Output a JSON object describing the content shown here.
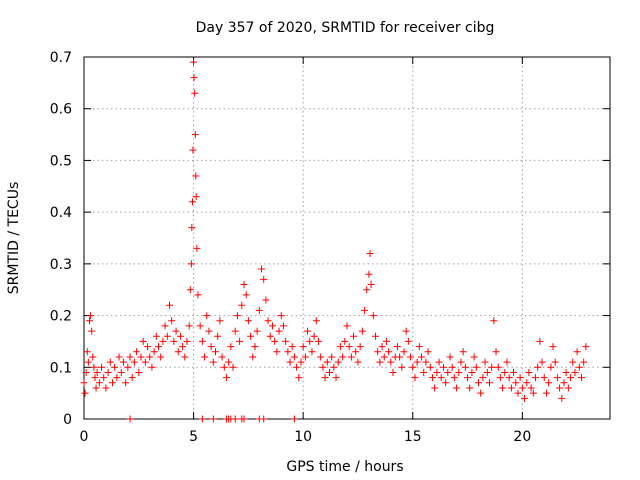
{
  "chart_data": {
    "type": "scatter",
    "title": "Day 357 of 2020, SRMTID for receiver cibg",
    "xlabel": "GPS time / hours",
    "ylabel": "SRMTID / TECUs",
    "xlim": [
      0,
      24
    ],
    "ylim": [
      0,
      0.7
    ],
    "x_ticks": [
      0,
      5,
      10,
      15,
      20
    ],
    "y_ticks": [
      0,
      0.1,
      0.2,
      0.3,
      0.4,
      0.5,
      0.6,
      0.7
    ],
    "x_tick_labels": [
      "0",
      "5",
      "10",
      "15",
      "20"
    ],
    "y_tick_labels": [
      "0",
      "0.1",
      "0.2",
      "0.3",
      "0.4",
      "0.5",
      "0.6",
      "0.7"
    ],
    "grid": true,
    "marker": "plus",
    "marker_color": "#ff0000",
    "series": [
      {
        "name": "SRMTID",
        "points": [
          [
            0.0,
            0.07
          ],
          [
            0.05,
            0.05
          ],
          [
            0.1,
            0.09
          ],
          [
            0.15,
            0.13
          ],
          [
            0.2,
            0.11
          ],
          [
            0.25,
            0.19
          ],
          [
            0.3,
            0.2
          ],
          [
            0.35,
            0.17
          ],
          [
            0.4,
            0.12
          ],
          [
            0.45,
            0.1
          ],
          [
            0.5,
            0.08
          ],
          [
            0.55,
            0.06
          ],
          [
            0.6,
            0.09
          ],
          [
            0.7,
            0.07
          ],
          [
            0.8,
            0.1
          ],
          [
            0.9,
            0.08
          ],
          [
            1.0,
            0.06
          ],
          [
            1.1,
            0.09
          ],
          [
            1.2,
            0.11
          ],
          [
            1.3,
            0.07
          ],
          [
            1.4,
            0.1
          ],
          [
            1.5,
            0.08
          ],
          [
            1.6,
            0.12
          ],
          [
            1.7,
            0.09
          ],
          [
            1.8,
            0.11
          ],
          [
            1.9,
            0.07
          ],
          [
            2.0,
            0.1
          ],
          [
            2.1,
            0.12
          ],
          [
            2.2,
            0.08
          ],
          [
            2.3,
            0.11
          ],
          [
            2.4,
            0.13
          ],
          [
            2.5,
            0.09
          ],
          [
            2.6,
            0.12
          ],
          [
            2.7,
            0.15
          ],
          [
            2.8,
            0.11
          ],
          [
            2.9,
            0.14
          ],
          [
            3.0,
            0.12
          ],
          [
            3.1,
            0.1
          ],
          [
            3.2,
            0.13
          ],
          [
            3.3,
            0.16
          ],
          [
            3.4,
            0.14
          ],
          [
            3.5,
            0.12
          ],
          [
            3.6,
            0.15
          ],
          [
            3.7,
            0.18
          ],
          [
            3.8,
            0.16
          ],
          [
            3.9,
            0.22
          ],
          [
            4.0,
            0.19
          ],
          [
            4.1,
            0.15
          ],
          [
            4.2,
            0.17
          ],
          [
            4.3,
            0.13
          ],
          [
            4.4,
            0.16
          ],
          [
            4.5,
            0.14
          ],
          [
            4.6,
            0.12
          ],
          [
            4.7,
            0.15
          ],
          [
            4.8,
            0.18
          ],
          [
            4.85,
            0.25
          ],
          [
            4.9,
            0.3
          ],
          [
            4.92,
            0.37
          ],
          [
            4.95,
            0.42
          ],
          [
            4.97,
            0.52
          ],
          [
            5.0,
            0.69
          ],
          [
            5.02,
            0.66
          ],
          [
            5.05,
            0.63
          ],
          [
            5.08,
            0.55
          ],
          [
            5.1,
            0.47
          ],
          [
            5.12,
            0.43
          ],
          [
            5.15,
            0.33
          ],
          [
            5.2,
            0.24
          ],
          [
            5.3,
            0.18
          ],
          [
            5.4,
            0.15
          ],
          [
            5.5,
            0.12
          ],
          [
            5.6,
            0.2
          ],
          [
            5.7,
            0.17
          ],
          [
            5.8,
            0.14
          ],
          [
            5.9,
            0.11
          ],
          [
            6.0,
            0.13
          ],
          [
            6.1,
            0.16
          ],
          [
            6.2,
            0.19
          ],
          [
            6.3,
            0.12
          ],
          [
            6.4,
            0.1
          ],
          [
            6.5,
            0.08
          ],
          [
            6.6,
            0.11
          ],
          [
            6.7,
            0.14
          ],
          [
            6.8,
            0.1
          ],
          [
            6.9,
            0.17
          ],
          [
            7.0,
            0.2
          ],
          [
            7.1,
            0.15
          ],
          [
            7.2,
            0.22
          ],
          [
            7.3,
            0.26
          ],
          [
            7.4,
            0.24
          ],
          [
            7.5,
            0.19
          ],
          [
            7.6,
            0.16
          ],
          [
            7.7,
            0.12
          ],
          [
            7.8,
            0.14
          ],
          [
            7.9,
            0.17
          ],
          [
            8.0,
            0.21
          ],
          [
            8.1,
            0.29
          ],
          [
            8.2,
            0.27
          ],
          [
            8.3,
            0.23
          ],
          [
            8.4,
            0.19
          ],
          [
            8.5,
            0.16
          ],
          [
            8.6,
            0.18
          ],
          [
            8.7,
            0.15
          ],
          [
            8.8,
            0.13
          ],
          [
            8.9,
            0.17
          ],
          [
            9.0,
            0.2
          ],
          [
            9.1,
            0.18
          ],
          [
            9.2,
            0.15
          ],
          [
            9.3,
            0.13
          ],
          [
            9.4,
            0.11
          ],
          [
            9.5,
            0.14
          ],
          [
            9.6,
            0.12
          ],
          [
            9.7,
            0.1
          ],
          [
            9.8,
            0.08
          ],
          [
            9.9,
            0.11
          ],
          [
            10.0,
            0.14
          ],
          [
            10.1,
            0.12
          ],
          [
            10.2,
            0.17
          ],
          [
            10.3,
            0.15
          ],
          [
            10.4,
            0.13
          ],
          [
            10.5,
            0.16
          ],
          [
            10.6,
            0.19
          ],
          [
            10.7,
            0.15
          ],
          [
            10.8,
            0.12
          ],
          [
            10.9,
            0.1
          ],
          [
            11.0,
            0.08
          ],
          [
            11.1,
            0.11
          ],
          [
            11.2,
            0.09
          ],
          [
            11.3,
            0.12
          ],
          [
            11.4,
            0.1
          ],
          [
            11.5,
            0.08
          ],
          [
            11.6,
            0.11
          ],
          [
            11.7,
            0.14
          ],
          [
            11.8,
            0.12
          ],
          [
            11.9,
            0.15
          ],
          [
            12.0,
            0.18
          ],
          [
            12.1,
            0.14
          ],
          [
            12.2,
            0.12
          ],
          [
            12.3,
            0.16
          ],
          [
            12.4,
            0.13
          ],
          [
            12.5,
            0.11
          ],
          [
            12.6,
            0.14
          ],
          [
            12.7,
            0.17
          ],
          [
            12.8,
            0.21
          ],
          [
            12.9,
            0.25
          ],
          [
            13.0,
            0.28
          ],
          [
            13.05,
            0.32
          ],
          [
            13.1,
            0.26
          ],
          [
            13.2,
            0.2
          ],
          [
            13.3,
            0.16
          ],
          [
            13.4,
            0.13
          ],
          [
            13.5,
            0.11
          ],
          [
            13.6,
            0.14
          ],
          [
            13.7,
            0.12
          ],
          [
            13.8,
            0.15
          ],
          [
            13.9,
            0.13
          ],
          [
            14.0,
            0.11
          ],
          [
            14.1,
            0.09
          ],
          [
            14.2,
            0.12
          ],
          [
            14.3,
            0.14
          ],
          [
            14.4,
            0.12
          ],
          [
            14.5,
            0.1
          ],
          [
            14.6,
            0.13
          ],
          [
            14.7,
            0.17
          ],
          [
            14.8,
            0.15
          ],
          [
            14.9,
            0.12
          ],
          [
            15.0,
            0.1
          ],
          [
            15.1,
            0.08
          ],
          [
            15.2,
            0.11
          ],
          [
            15.3,
            0.14
          ],
          [
            15.4,
            0.12
          ],
          [
            15.5,
            0.09
          ],
          [
            15.6,
            0.11
          ],
          [
            15.7,
            0.13
          ],
          [
            15.8,
            0.1
          ],
          [
            15.9,
            0.08
          ],
          [
            16.0,
            0.06
          ],
          [
            16.1,
            0.09
          ],
          [
            16.2,
            0.11
          ],
          [
            16.3,
            0.08
          ],
          [
            16.4,
            0.1
          ],
          [
            16.5,
            0.07
          ],
          [
            16.6,
            0.09
          ],
          [
            16.7,
            0.12
          ],
          [
            16.8,
            0.1
          ],
          [
            16.9,
            0.08
          ],
          [
            17.0,
            0.06
          ],
          [
            17.1,
            0.09
          ],
          [
            17.2,
            0.11
          ],
          [
            17.3,
            0.13
          ],
          [
            17.4,
            0.1
          ],
          [
            17.5,
            0.08
          ],
          [
            17.6,
            0.06
          ],
          [
            17.7,
            0.09
          ],
          [
            17.8,
            0.12
          ],
          [
            17.9,
            0.1
          ],
          [
            18.0,
            0.07
          ],
          [
            18.1,
            0.05
          ],
          [
            18.2,
            0.08
          ],
          [
            18.3,
            0.11
          ],
          [
            18.4,
            0.09
          ],
          [
            18.5,
            0.07
          ],
          [
            18.6,
            0.1
          ],
          [
            18.7,
            0.19
          ],
          [
            18.8,
            0.13
          ],
          [
            18.9,
            0.1
          ],
          [
            19.0,
            0.08
          ],
          [
            19.1,
            0.06
          ],
          [
            19.2,
            0.09
          ],
          [
            19.3,
            0.11
          ],
          [
            19.4,
            0.08
          ],
          [
            19.5,
            0.06
          ],
          [
            19.6,
            0.09
          ],
          [
            19.7,
            0.07
          ],
          [
            19.8,
            0.05
          ],
          [
            19.9,
            0.08
          ],
          [
            20.0,
            0.06
          ],
          [
            20.1,
            0.04
          ],
          [
            20.2,
            0.07
          ],
          [
            20.3,
            0.09
          ],
          [
            20.4,
            0.06
          ],
          [
            20.5,
            0.05
          ],
          [
            20.6,
            0.08
          ],
          [
            20.7,
            0.1
          ],
          [
            20.8,
            0.15
          ],
          [
            20.9,
            0.11
          ],
          [
            21.0,
            0.08
          ],
          [
            21.1,
            0.05
          ],
          [
            21.2,
            0.07
          ],
          [
            21.3,
            0.1
          ],
          [
            21.4,
            0.14
          ],
          [
            21.5,
            0.11
          ],
          [
            21.6,
            0.08
          ],
          [
            21.7,
            0.06
          ],
          [
            21.8,
            0.04
          ],
          [
            21.9,
            0.07
          ],
          [
            22.0,
            0.09
          ],
          [
            22.1,
            0.06
          ],
          [
            22.2,
            0.08
          ],
          [
            22.3,
            0.11
          ],
          [
            22.4,
            0.09
          ],
          [
            22.5,
            0.13
          ],
          [
            22.6,
            0.1
          ],
          [
            22.7,
            0.08
          ],
          [
            22.8,
            0.11
          ],
          [
            22.9,
            0.14
          ],
          [
            2.1,
            0.0
          ],
          [
            5.4,
            0.0
          ],
          [
            5.9,
            0.0
          ],
          [
            6.5,
            0.0
          ],
          [
            6.6,
            0.0
          ],
          [
            6.7,
            0.0
          ],
          [
            6.9,
            0.0
          ],
          [
            7.2,
            0.0
          ],
          [
            7.3,
            0.0
          ],
          [
            8.0,
            0.0
          ],
          [
            8.2,
            0.0
          ],
          [
            9.6,
            0.0
          ]
        ]
      }
    ]
  }
}
